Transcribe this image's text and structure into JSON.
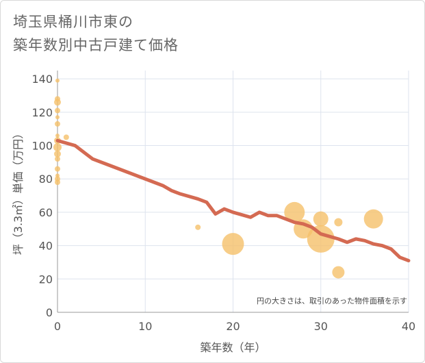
{
  "title_line1": "埼玉県桶川市東の",
  "title_line2": "築年数別中古戸建て価格",
  "note": "円の大きさは、取引のあった物件面積を示す",
  "colors": {
    "bubble": "#f5c06a",
    "trend": "#d46a52",
    "grid": "#dde3ee",
    "text": "#555555"
  },
  "chart_data": {
    "type": "scatter",
    "xlabel": "築年数（年）",
    "ylabel": "坪（3.3㎡）単価（万円）",
    "xlim": [
      0,
      40
    ],
    "ylim": [
      0,
      145
    ],
    "xticks": [
      0,
      10,
      20,
      30,
      40
    ],
    "yticks": [
      0,
      20,
      40,
      60,
      80,
      100,
      120,
      140
    ],
    "grid": true,
    "points": [
      {
        "x": 0,
        "y": 139,
        "size": 3
      },
      {
        "x": 0,
        "y": 128,
        "size": 4
      },
      {
        "x": 0,
        "y": 126,
        "size": 5
      },
      {
        "x": 0,
        "y": 121,
        "size": 4
      },
      {
        "x": 0,
        "y": 117,
        "size": 3
      },
      {
        "x": 0,
        "y": 113,
        "size": 4
      },
      {
        "x": 0,
        "y": 106,
        "size": 3
      },
      {
        "x": 0,
        "y": 103,
        "size": 5
      },
      {
        "x": 0,
        "y": 99,
        "size": 6
      },
      {
        "x": 0,
        "y": 95,
        "size": 5
      },
      {
        "x": 0,
        "y": 92,
        "size": 4
      },
      {
        "x": 0,
        "y": 86,
        "size": 4
      },
      {
        "x": 0,
        "y": 82,
        "size": 3
      },
      {
        "x": 0,
        "y": 80,
        "size": 4
      },
      {
        "x": 0,
        "y": 78,
        "size": 4
      },
      {
        "x": 1,
        "y": 105,
        "size": 4
      },
      {
        "x": 16,
        "y": 51,
        "size": 4
      },
      {
        "x": 20,
        "y": 41,
        "size": 16
      },
      {
        "x": 27,
        "y": 60,
        "size": 15
      },
      {
        "x": 28,
        "y": 50,
        "size": 14
      },
      {
        "x": 30,
        "y": 56,
        "size": 11
      },
      {
        "x": 30,
        "y": 44,
        "size": 20
      },
      {
        "x": 32,
        "y": 54,
        "size": 6
      },
      {
        "x": 32,
        "y": 24,
        "size": 9
      },
      {
        "x": 36,
        "y": 56,
        "size": 14
      }
    ],
    "trend": {
      "x": [
        0,
        2,
        4,
        6,
        8,
        10,
        12,
        13,
        14,
        16,
        17,
        18,
        19,
        20,
        22,
        23,
        24,
        25,
        26,
        27,
        28,
        29,
        30,
        32,
        33,
        34,
        35,
        36,
        37,
        38,
        39,
        40
      ],
      "y": [
        103,
        100,
        92,
        88,
        84,
        80,
        76,
        73,
        71,
        68,
        66,
        59,
        62,
        60,
        57,
        60,
        58,
        58,
        56,
        54,
        53,
        51,
        47,
        44,
        42,
        44,
        43,
        41,
        40,
        38,
        33,
        31
      ]
    }
  }
}
